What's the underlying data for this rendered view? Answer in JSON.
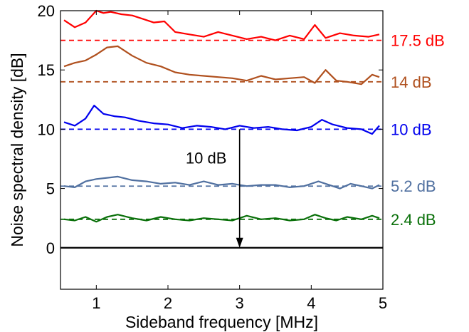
{
  "chart_data": {
    "type": "line",
    "title": "",
    "xlabel": "Sideband frequency [MHz]",
    "ylabel": "Noise spectral density [dB]",
    "xlim": [
      0.5,
      5
    ],
    "ylim": [
      -3.5,
      20
    ],
    "xticks": [
      "1",
      "2",
      "3",
      "4",
      "5"
    ],
    "yticks": [
      "0",
      "5",
      "10",
      "15",
      "20"
    ],
    "grid": false,
    "legend": "none",
    "baseline": {
      "y": 0,
      "color": "#000000"
    },
    "annotation": {
      "text": "10 dB",
      "x": 3.0,
      "y_from": 10,
      "y_to": 0
    },
    "series": [
      {
        "label": "17.5 dB",
        "color": "#ff0000",
        "reference_level": 17.5,
        "x": [
          0.55,
          0.7,
          0.85,
          1.0,
          1.1,
          1.2,
          1.35,
          1.5,
          1.65,
          1.8,
          1.95,
          2.1,
          2.3,
          2.5,
          2.7,
          2.9,
          3.1,
          3.3,
          3.5,
          3.7,
          3.9,
          4.05,
          4.2,
          4.4,
          4.6,
          4.8,
          4.95
        ],
        "y": [
          19.2,
          18.6,
          19.0,
          20.0,
          19.8,
          19.9,
          19.7,
          19.6,
          19.3,
          19.0,
          19.1,
          18.2,
          18.0,
          17.8,
          18.2,
          17.9,
          17.6,
          17.8,
          17.5,
          17.9,
          17.6,
          18.8,
          17.7,
          18.1,
          17.9,
          17.8,
          18.0
        ]
      },
      {
        "label": "14 dB",
        "color": "#b0501e",
        "reference_level": 14,
        "x": [
          0.55,
          0.7,
          0.85,
          1.0,
          1.15,
          1.3,
          1.5,
          1.7,
          1.9,
          2.1,
          2.3,
          2.5,
          2.7,
          2.9,
          3.1,
          3.3,
          3.5,
          3.7,
          3.9,
          4.05,
          4.2,
          4.35,
          4.5,
          4.7,
          4.85,
          4.95
        ],
        "y": [
          15.3,
          15.6,
          15.8,
          16.3,
          16.9,
          17.0,
          16.2,
          15.6,
          15.3,
          14.8,
          14.6,
          14.5,
          14.4,
          14.3,
          14.1,
          14.5,
          14.2,
          14.3,
          14.4,
          13.9,
          15.0,
          14.1,
          14.0,
          13.8,
          14.6,
          14.4
        ]
      },
      {
        "label": "10 dB",
        "color": "#0000ee",
        "reference_level": 10,
        "x": [
          0.55,
          0.7,
          0.85,
          0.97,
          1.1,
          1.25,
          1.4,
          1.6,
          1.8,
          2.0,
          2.2,
          2.4,
          2.6,
          2.8,
          3.0,
          3.2,
          3.4,
          3.6,
          3.8,
          4.0,
          4.15,
          4.3,
          4.5,
          4.7,
          4.85,
          4.95
        ],
        "y": [
          10.6,
          10.3,
          10.9,
          12.0,
          11.3,
          11.1,
          11.0,
          10.7,
          10.5,
          10.4,
          10.1,
          10.3,
          10.2,
          10.0,
          10.3,
          10.1,
          10.2,
          10.0,
          9.9,
          10.2,
          10.8,
          10.4,
          10.1,
          10.0,
          9.6,
          10.3
        ]
      },
      {
        "label": "5.2 dB",
        "color": "#5070a0",
        "reference_level": 5.2,
        "x": [
          0.55,
          0.7,
          0.85,
          1.0,
          1.15,
          1.3,
          1.5,
          1.7,
          1.9,
          2.1,
          2.3,
          2.5,
          2.7,
          2.9,
          3.1,
          3.3,
          3.5,
          3.7,
          3.9,
          4.1,
          4.25,
          4.4,
          4.55,
          4.7,
          4.85,
          4.95
        ],
        "y": [
          5.2,
          5.1,
          5.6,
          5.8,
          5.9,
          6.0,
          5.7,
          5.6,
          5.4,
          5.5,
          5.3,
          5.6,
          5.3,
          5.4,
          5.2,
          5.3,
          5.3,
          5.1,
          5.2,
          5.6,
          5.3,
          5.0,
          5.4,
          5.2,
          5.0,
          5.3
        ]
      },
      {
        "label": "2.4 dB",
        "color": "#0a700a",
        "reference_level": 2.4,
        "x": [
          0.55,
          0.7,
          0.85,
          1.0,
          1.15,
          1.3,
          1.5,
          1.7,
          1.9,
          2.1,
          2.3,
          2.5,
          2.7,
          2.9,
          3.1,
          3.3,
          3.5,
          3.7,
          3.9,
          4.05,
          4.2,
          4.35,
          4.5,
          4.7,
          4.85,
          4.95
        ],
        "y": [
          2.4,
          2.3,
          2.6,
          2.2,
          2.6,
          2.8,
          2.5,
          2.3,
          2.6,
          2.4,
          2.3,
          2.5,
          2.4,
          2.3,
          2.7,
          2.4,
          2.5,
          2.3,
          2.4,
          2.8,
          2.5,
          2.3,
          2.6,
          2.4,
          2.7,
          2.5
        ]
      }
    ]
  }
}
